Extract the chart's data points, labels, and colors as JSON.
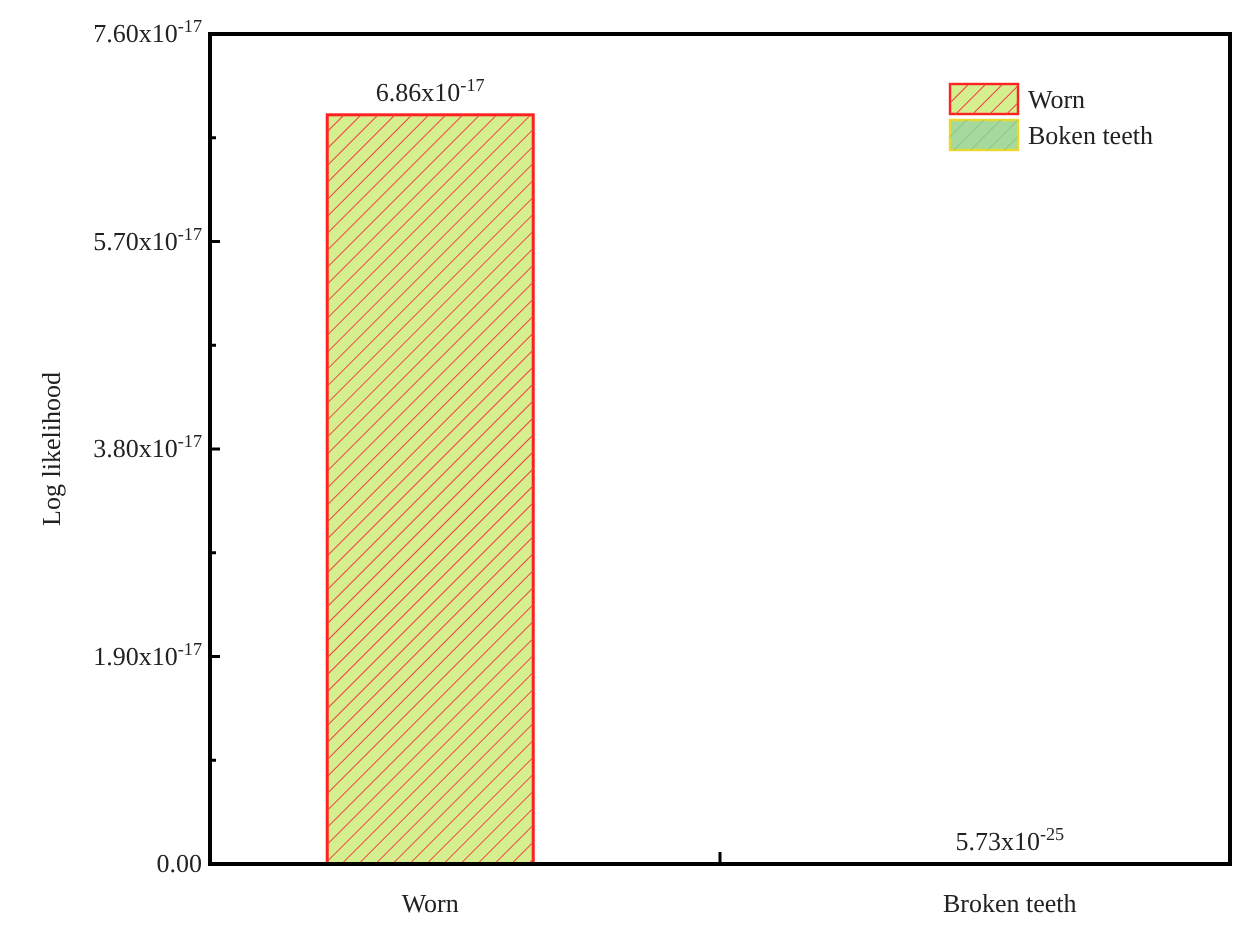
{
  "chart_data": {
    "type": "bar",
    "ylabel": "Log likelihood",
    "categories": [
      "Worn",
      "Broken teeth"
    ],
    "series": [
      {
        "name": "Worn",
        "color": "#d5ef8f",
        "values": [
          6.86e-17,
          null
        ],
        "value_labels": [
          "6.86x10$^{-17}$",
          null
        ]
      },
      {
        "name": "Boken teeth",
        "color": "#a6d99d",
        "values": [
          null,
          5.73e-25
        ],
        "value_labels": [
          null,
          "5.73x10$^{-25}$"
        ]
      }
    ],
    "ylim": [
      0,
      7.6e-17
    ],
    "yticks": [
      {
        "value": 0,
        "label": "0.00"
      },
      {
        "value": 9.5e-18,
        "label": null
      },
      {
        "value": 1.9e-17,
        "label": "1.90x10$^{-17}$"
      },
      {
        "value": 2.85e-17,
        "label": null
      },
      {
        "value": 3.8e-17,
        "label": "3.80x10$^{-17}$"
      },
      {
        "value": 4.75e-17,
        "label": null
      },
      {
        "value": 5.7e-17,
        "label": "5.70x10$^{-17}$"
      },
      {
        "value": 6.65e-17,
        "label": null
      },
      {
        "value": 7.6e-17,
        "label": "7.60x10$^{-17}$"
      }
    ],
    "grid": false,
    "legend": "top right"
  }
}
